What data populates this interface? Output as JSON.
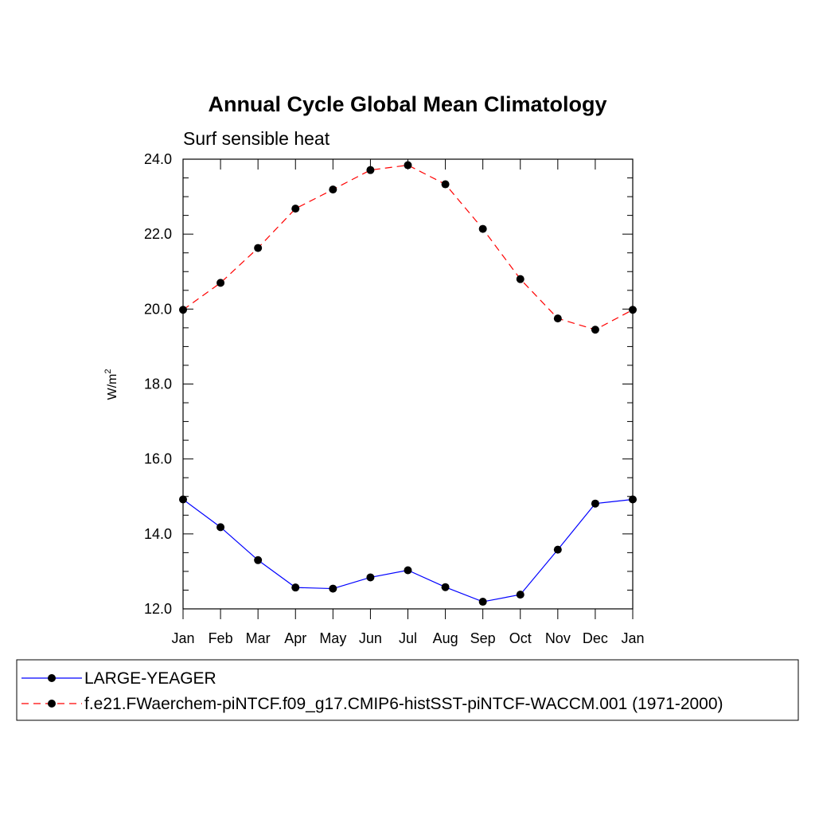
{
  "chart_data": {
    "type": "line",
    "title": "Annual Cycle Global Mean Climatology",
    "subtitle": "Surf sensible heat",
    "ylabel": "W/m",
    "ylabel_sup": "2",
    "xlabel": "",
    "categories": [
      "Jan",
      "Feb",
      "Mar",
      "Apr",
      "May",
      "Jun",
      "Jul",
      "Aug",
      "Sep",
      "Oct",
      "Nov",
      "Dec",
      "Jan"
    ],
    "ylim": [
      12.0,
      24.0
    ],
    "yticks": [
      "12.0",
      "14.0",
      "16.0",
      "18.0",
      "20.0",
      "22.0",
      "24.0"
    ],
    "grid": false,
    "legend_position": "bottom",
    "series": [
      {
        "name": "LARGE-YEAGER",
        "color": "#0000ff",
        "dash": "solid",
        "values": [
          14.92,
          14.18,
          13.3,
          12.57,
          12.54,
          12.84,
          13.03,
          12.58,
          12.19,
          12.38,
          13.58,
          14.81,
          14.92
        ]
      },
      {
        "name": "f.e21.FWaerchem-piNTCF.f09_g17.CMIP6-histSST-piNTCF-WACCM.001 (1971-2000)",
        "color": "#ff0000",
        "dash": "dashed",
        "values": [
          19.98,
          20.7,
          21.63,
          22.68,
          23.19,
          23.71,
          23.84,
          23.33,
          22.14,
          20.8,
          19.75,
          19.45,
          19.98
        ]
      }
    ]
  }
}
